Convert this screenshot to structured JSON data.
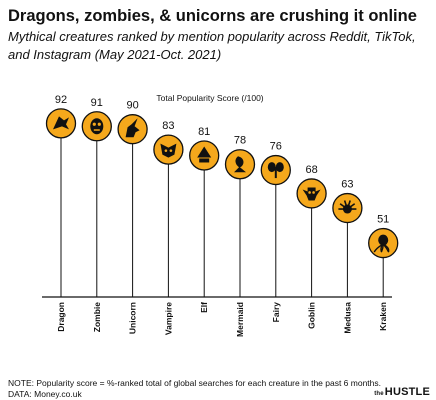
{
  "title": "Dragons, zombies, & unicorns are crushing it online",
  "subtitle": "Mythical creatures ranked by mention popularity across Reddit, TikTok, and Instagram (May 2021-Oct. 2021)",
  "footnote": {
    "note": "NOTE: Popularity score = %-ranked total of global searches for each creature in the past 6 months.",
    "source": "DATA: Money.co.uk"
  },
  "brand": {
    "prefix": "the",
    "name": "HUSTLE"
  },
  "colors": {
    "accent": "#f5a81c",
    "ink": "#111111"
  },
  "chart_data": {
    "type": "bar",
    "title": "Total Popularity Score (/100)",
    "xlabel": "",
    "ylabel": "",
    "ylim": [
      45,
      100
    ],
    "grid": false,
    "categories": [
      "Dragon",
      "Zombie",
      "Unicorn",
      "Vampire",
      "Elf",
      "Mermaid",
      "Fairy",
      "Goblin",
      "Medusa",
      "Kraken"
    ],
    "values": [
      92,
      91,
      90,
      83,
      81,
      78,
      76,
      68,
      63,
      51
    ],
    "icons": [
      "dragon-icon",
      "zombie-icon",
      "unicorn-icon",
      "vampire-icon",
      "elf-icon",
      "mermaid-icon",
      "fairy-icon",
      "goblin-icon",
      "medusa-icon",
      "kraken-icon"
    ]
  }
}
